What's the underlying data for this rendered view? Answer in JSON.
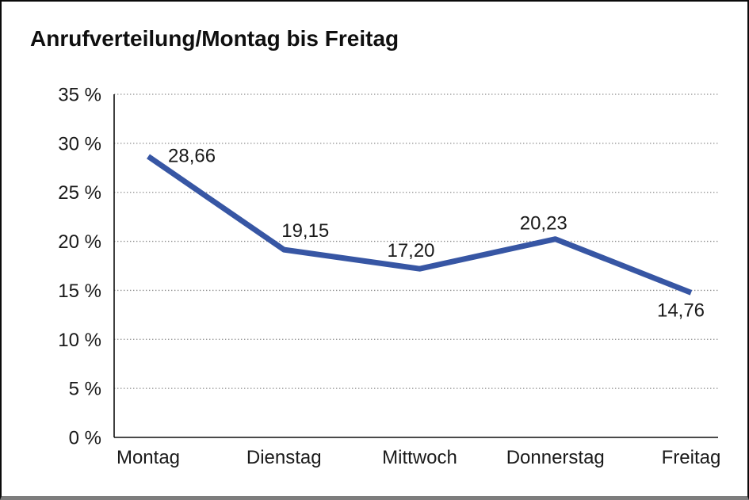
{
  "window": {
    "background": "#ffffff",
    "frame_border_color": "#0a0a0a",
    "bottom_edge_color": "#7d7d7d"
  },
  "chart_data": {
    "type": "line",
    "title": "Anrufverteilung/Montag bis Freitag",
    "categories": [
      "Montag",
      "Dienstag",
      "Mittwoch",
      "Donnerstag",
      "Freitag"
    ],
    "values": [
      28.66,
      19.15,
      17.2,
      20.23,
      14.76
    ],
    "point_labels": [
      "28,66",
      "19,15",
      "17,20",
      "20,23",
      "14,76"
    ],
    "series_name": "Anrufverteilung",
    "xlabel": "",
    "ylabel": "",
    "ylim": [
      0,
      35
    ],
    "ytick_step": 5,
    "ytick_labels": [
      "0 %",
      "5 %",
      "10 %",
      "15 %",
      "20 %",
      "25 %",
      "30 %",
      "35 %"
    ],
    "grid": "horizontal-dotted",
    "legend": "none",
    "line_color": "#3756A4",
    "grid_color": "#8c8c8c",
    "axis_color": "#0f0f0f",
    "label_color": "#1a1a1a"
  }
}
